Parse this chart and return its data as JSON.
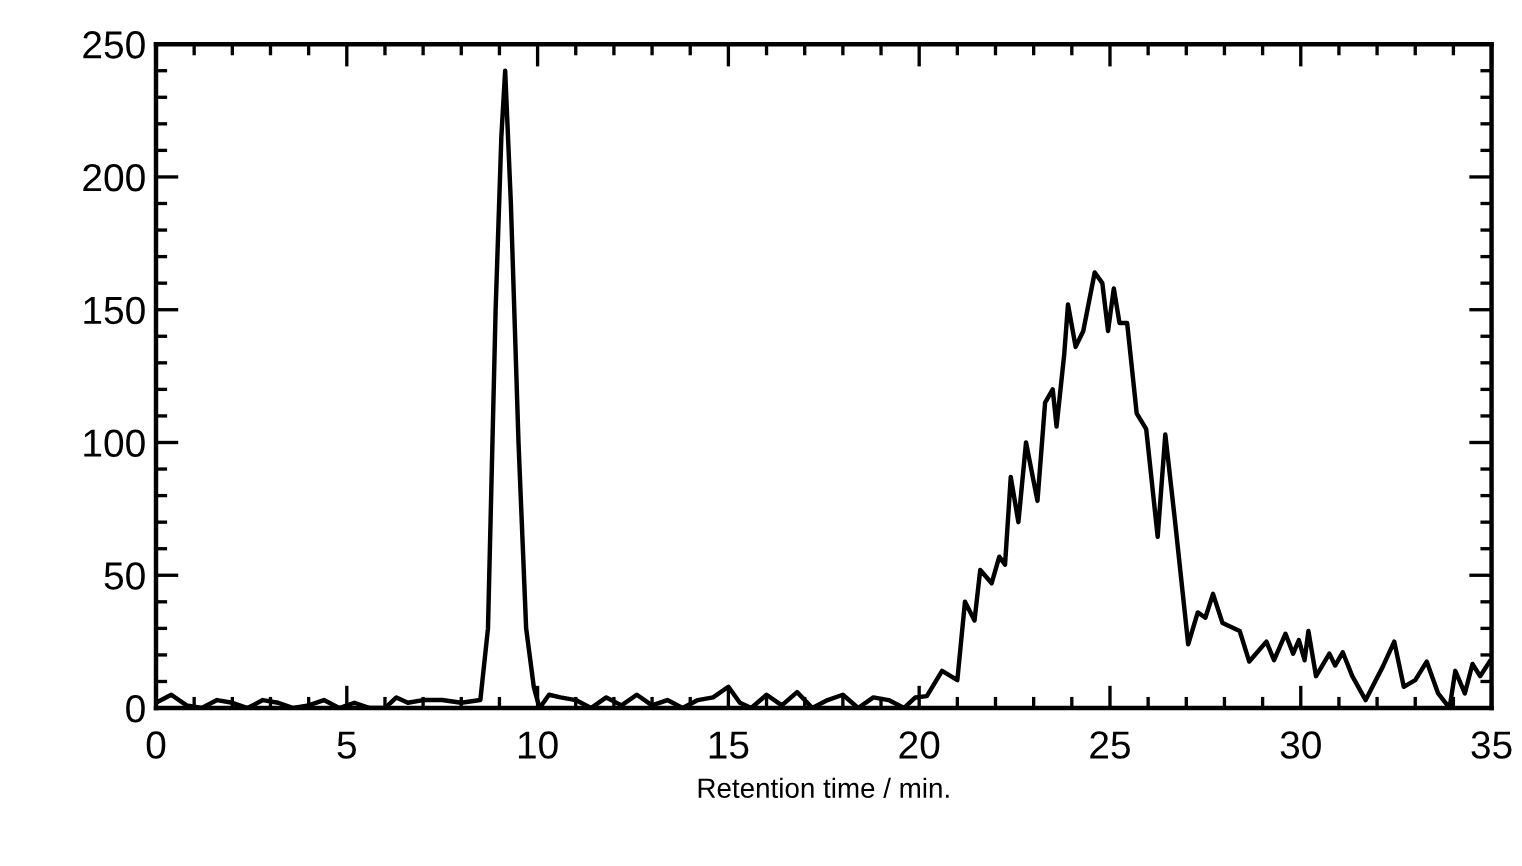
{
  "chart_data": {
    "type": "line",
    "xlabel": "Retention time / min.",
    "xlim": [
      0,
      35
    ],
    "ylim": [
      0,
      250
    ],
    "xticks": [
      0,
      {
        "value": 1,
        "label": null
      },
      {
        "value": 2,
        "label": null
      },
      {
        "value": 3,
        "label": null
      },
      {
        "value": 4,
        "label": null
      },
      5,
      {
        "value": 6,
        "label": null
      },
      {
        "value": 7,
        "label": null
      },
      {
        "value": 8,
        "label": null
      },
      {
        "value": 9,
        "label": null
      },
      10,
      {
        "value": 11,
        "label": null
      },
      {
        "value": 12,
        "label": null
      },
      {
        "value": 13,
        "label": null
      },
      {
        "value": 14,
        "label": null
      },
      15,
      {
        "value": 16,
        "label": null
      },
      {
        "value": 17,
        "label": null
      },
      {
        "value": 18,
        "label": null
      },
      {
        "value": 19,
        "label": null
      },
      20,
      {
        "value": 21,
        "label": null
      },
      {
        "value": 22,
        "label": null
      },
      {
        "value": 23,
        "label": null
      },
      {
        "value": 24,
        "label": null
      },
      25,
      {
        "value": 26,
        "label": null
      },
      {
        "value": 27,
        "label": null
      },
      {
        "value": 28,
        "label": null
      },
      {
        "value": 29,
        "label": null
      },
      30,
      {
        "value": 31,
        "label": null
      },
      {
        "value": 32,
        "label": null
      },
      {
        "value": 33,
        "label": null
      },
      {
        "value": 34,
        "label": null
      },
      35
    ],
    "yticks": [
      0,
      {
        "value": 10,
        "label": null
      },
      {
        "value": 20,
        "label": null
      },
      {
        "value": 30,
        "label": null
      },
      {
        "value": 40,
        "label": null
      },
      50,
      {
        "value": 60,
        "label": null
      },
      {
        "value": 70,
        "label": null
      },
      {
        "value": 80,
        "label": null
      },
      {
        "value": 90,
        "label": null
      },
      100,
      {
        "value": 110,
        "label": null
      },
      {
        "value": 120,
        "label": null
      },
      {
        "value": 130,
        "label": null
      },
      {
        "value": 140,
        "label": null
      },
      150,
      {
        "value": 160,
        "label": null
      },
      {
        "value": 170,
        "label": null
      },
      {
        "value": 180,
        "label": null
      },
      {
        "value": 190,
        "label": null
      },
      200,
      {
        "value": 210,
        "label": null
      },
      {
        "value": 220,
        "label": null
      },
      {
        "value": 230,
        "label": null
      },
      {
        "value": 240,
        "label": null
      },
      250
    ],
    "grid": false,
    "marker": "none",
    "line_style": "solid",
    "series": [
      {
        "color": "#000000",
        "x": [
          0,
          0.4,
          0.8,
          1.2,
          1.6,
          2.0,
          2.4,
          2.8,
          3.2,
          3.6,
          4.0,
          4.4,
          4.8,
          5.2,
          5.6,
          6.0,
          6.3,
          6.6,
          7.0,
          7.5,
          8.0,
          8.5,
          8.7,
          8.9,
          9.05,
          9.15,
          9.3,
          9.5,
          9.7,
          9.9,
          10.05,
          10.3,
          10.6,
          11.0,
          11.4,
          11.8,
          12.2,
          12.6,
          13.0,
          13.4,
          13.8,
          14.2,
          14.6,
          15.0,
          15.3,
          15.6,
          16.0,
          16.4,
          16.8,
          17.2,
          17.6,
          18.0,
          18.4,
          18.8,
          19.2,
          19.6,
          19.9,
          20.2,
          20.6,
          21.0,
          21.2,
          21.45,
          21.6,
          21.9,
          22.1,
          22.25,
          22.4,
          22.6,
          22.8,
          23.1,
          23.3,
          23.5,
          23.6,
          23.8,
          23.9,
          24.1,
          24.3,
          24.6,
          24.8,
          24.95,
          25.1,
          25.25,
          25.45,
          25.7,
          25.95,
          26.25,
          26.45,
          26.7,
          27.05,
          27.3,
          27.5,
          27.7,
          27.95,
          28.4,
          28.65,
          29.1,
          29.3,
          29.6,
          29.8,
          29.95,
          30.1,
          30.2,
          30.4,
          30.75,
          30.9,
          31.1,
          31.35,
          31.7,
          32.15,
          32.45,
          32.7,
          33.0,
          33.3,
          33.6,
          33.9,
          34.05,
          34.3,
          34.5,
          34.7,
          34.95
        ],
        "values": [
          2,
          5,
          1,
          0,
          3,
          2,
          0,
          3,
          2,
          0,
          1,
          3,
          0,
          2,
          0,
          0,
          4,
          2,
          3,
          3,
          2,
          3,
          30,
          150,
          215,
          240,
          190,
          100,
          30,
          8,
          0,
          5,
          4,
          3,
          0,
          4,
          1,
          5,
          1,
          3,
          0,
          3,
          4,
          8,
          2,
          0,
          5,
          1,
          6,
          0,
          3,
          5,
          0,
          4,
          3,
          0,
          4,
          4.5,
          14,
          10.5,
          40,
          33,
          52,
          47,
          57,
          54,
          87,
          70,
          100,
          78,
          115,
          120,
          106,
          133,
          152,
          136,
          142,
          164,
          160,
          142,
          158,
          145,
          145,
          111,
          105,
          64.5,
          103,
          71,
          24,
          36,
          34,
          43,
          32,
          29,
          17.5,
          25,
          18,
          28,
          20.5,
          25.6,
          18,
          29,
          12,
          20.5,
          16,
          21,
          12,
          3,
          15.6,
          25,
          8,
          10.5,
          17.5,
          5.5,
          0,
          14,
          5.5,
          16.6,
          12,
          17.5
        ]
      }
    ]
  }
}
